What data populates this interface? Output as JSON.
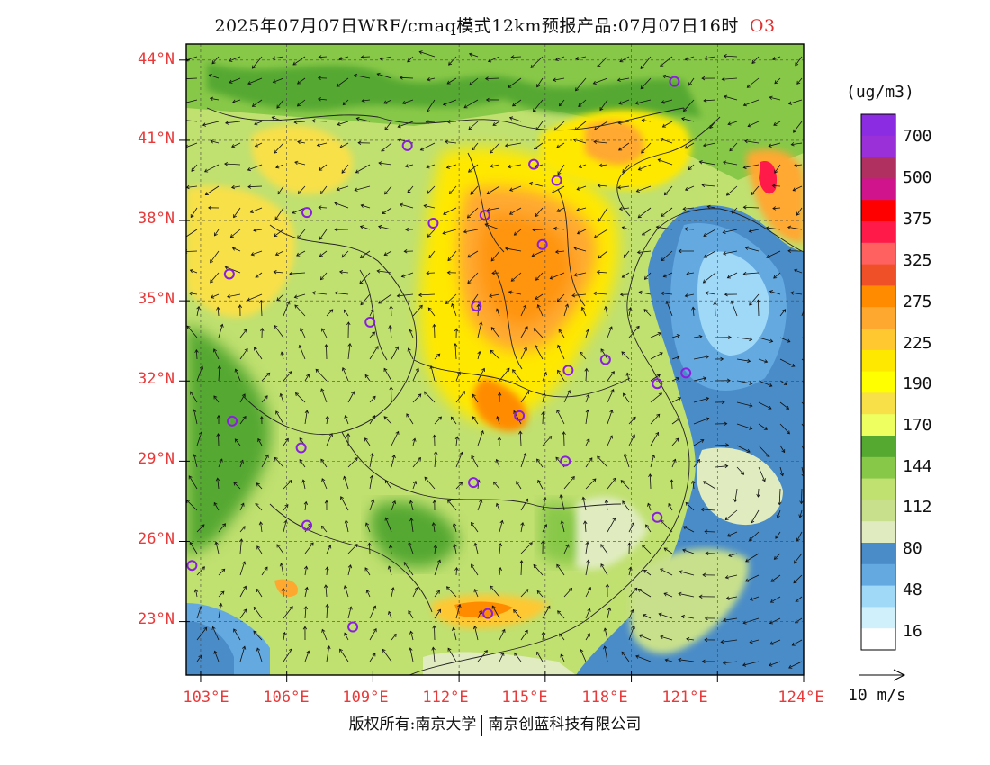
{
  "title": "2025年07月07日WRF/cmaq模式12km预报产品:07月07日16时",
  "species": "O3",
  "units": "(ug/m3)",
  "latitude_labels": [
    "44°N",
    "41°N",
    "38°N",
    "35°N",
    "32°N",
    "29°N",
    "26°N",
    "23°N"
  ],
  "longitude_labels": [
    "103°E",
    "106°E",
    "109°E",
    "112°E",
    "115°E",
    "118°E",
    "121°E",
    "124°E"
  ],
  "colorbar": {
    "colors": [
      "#8b2be2",
      "#9a30d8",
      "#b03060",
      "#d0148c",
      "#ff0000",
      "#ff1a4a",
      "#ff6060",
      "#f05028",
      "#ff8c00",
      "#ffa830",
      "#ffc830",
      "#ffe800",
      "#ffff00",
      "#f8e048",
      "#eeff60",
      "#55a830",
      "#88c848",
      "#c0e070",
      "#c8e08c",
      "#e0ecc0",
      "#4a8cc8",
      "#64aae0",
      "#a0d8f8",
      "#d0f0fc",
      "#ffffff"
    ],
    "labels": [
      "700",
      "500",
      "375",
      "325",
      "275",
      "225",
      "190",
      "170",
      "144",
      "112",
      "80",
      "48",
      "16"
    ]
  },
  "reference_vector": "10 m/s",
  "footer": {
    "left": "版权所有:南京大学",
    "right": "南京创蓝科技有限公司"
  },
  "stations": [
    {
      "lon": 119.5,
      "lat": 43.2
    },
    {
      "lon": 110.2,
      "lat": 40.8
    },
    {
      "lon": 114.6,
      "lat": 40.1
    },
    {
      "lon": 115.4,
      "lat": 39.5
    },
    {
      "lon": 106.7,
      "lat": 38.3
    },
    {
      "lon": 111.1,
      "lat": 37.9
    },
    {
      "lon": 112.9,
      "lat": 38.2
    },
    {
      "lon": 114.9,
      "lat": 37.1
    },
    {
      "lon": 104.0,
      "lat": 36.0
    },
    {
      "lon": 112.6,
      "lat": 34.8
    },
    {
      "lon": 108.9,
      "lat": 34.2
    },
    {
      "lon": 117.1,
      "lat": 32.8
    },
    {
      "lon": 115.8,
      "lat": 32.4
    },
    {
      "lon": 119.9,
      "lat": 32.3
    },
    {
      "lon": 118.9,
      "lat": 31.9
    },
    {
      "lon": 114.1,
      "lat": 30.7
    },
    {
      "lon": 104.1,
      "lat": 30.5
    },
    {
      "lon": 106.5,
      "lat": 29.5
    },
    {
      "lon": 115.7,
      "lat": 29.0
    },
    {
      "lon": 112.5,
      "lat": 28.2
    },
    {
      "lon": 106.7,
      "lat": 26.6
    },
    {
      "lon": 118.9,
      "lat": 26.9
    },
    {
      "lon": 102.7,
      "lat": 25.1
    },
    {
      "lon": 113.0,
      "lat": 23.3
    },
    {
      "lon": 108.3,
      "lat": 22.8
    }
  ]
}
